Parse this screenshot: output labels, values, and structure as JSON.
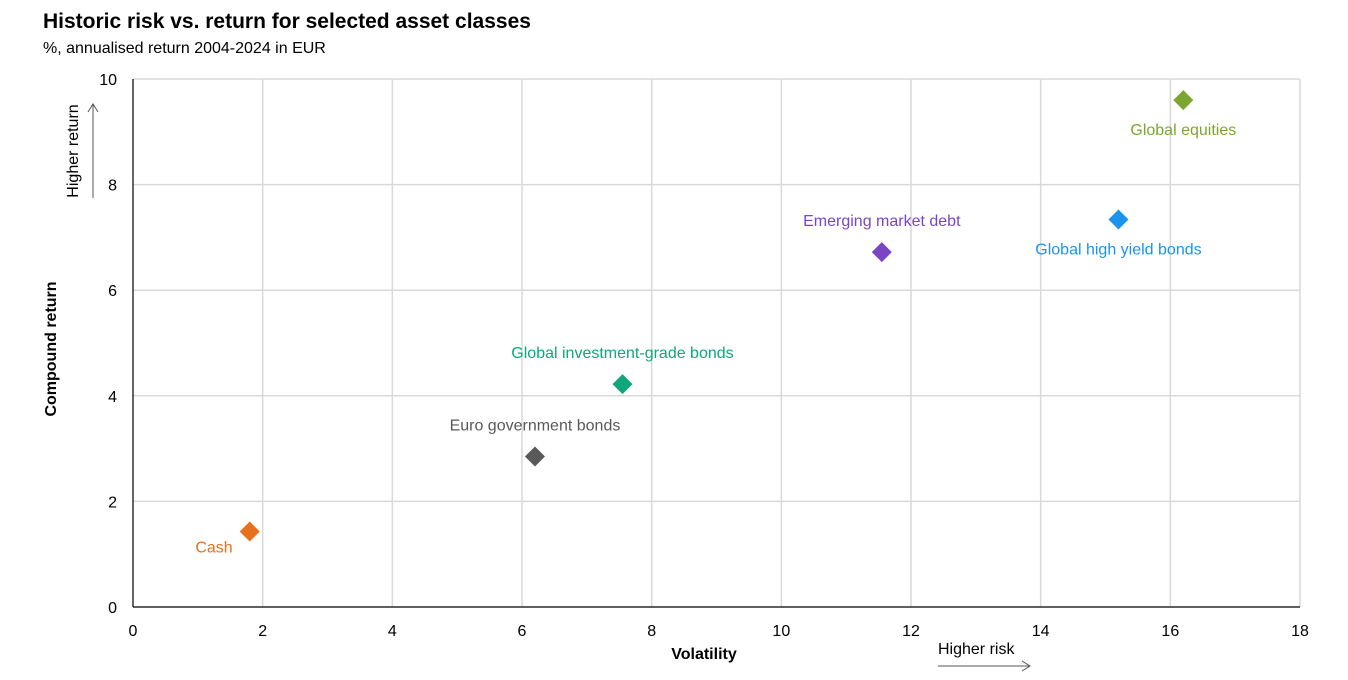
{
  "title": "Historic risk vs. return for selected asset classes",
  "subtitle": "%, annualised return 2004-2024 in EUR",
  "chart_data": {
    "type": "scatter",
    "title": "Historic risk vs. return for selected asset classes",
    "subtitle": "%, annualised return 2004-2024 in EUR",
    "xlabel": "Volatility",
    "ylabel": "Compound return",
    "xlim": [
      0,
      18
    ],
    "ylim": [
      0,
      10
    ],
    "xticks": [
      0,
      2,
      4,
      6,
      8,
      10,
      12,
      14,
      16,
      18
    ],
    "yticks": [
      0,
      2,
      4,
      6,
      8,
      10
    ],
    "grid": true,
    "annotations": {
      "x_arrow": "Higher risk",
      "y_arrow": "Higher return"
    },
    "points": [
      {
        "name": "Cash",
        "x": 1.8,
        "y": 1.43,
        "color": "#E8711D",
        "label_pos": "left-below"
      },
      {
        "name": "Euro government bonds",
        "x": 6.2,
        "y": 2.85,
        "color": "#595959",
        "label_pos": "above"
      },
      {
        "name": "Global investment-grade bonds",
        "x": 7.55,
        "y": 4.22,
        "color": "#0FA77B",
        "label_pos": "above"
      },
      {
        "name": "Emerging market debt",
        "x": 11.55,
        "y": 6.72,
        "color": "#7A45C4",
        "label_pos": "above"
      },
      {
        "name": "Global high yield bonds",
        "x": 15.2,
        "y": 7.34,
        "color": "#1A94EE",
        "label_pos": "below"
      },
      {
        "name": "Global equities",
        "x": 16.2,
        "y": 9.6,
        "color": "#7CA62F",
        "label_pos": "below"
      }
    ]
  }
}
